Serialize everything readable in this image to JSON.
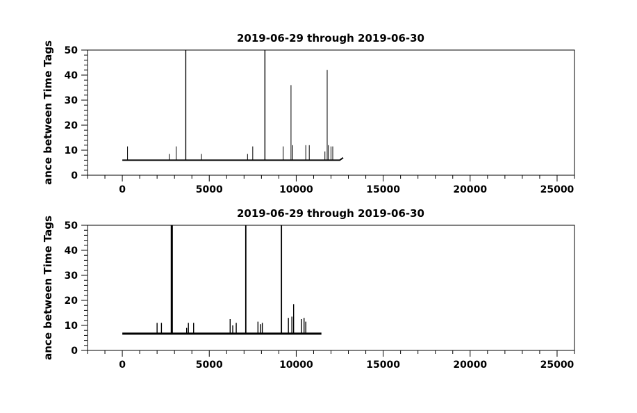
{
  "chart_data": [
    {
      "type": "line",
      "title": "2019-06-29 through 2019-06-30",
      "xlabel": "",
      "ylabel": "ance between Time Tags",
      "xlim": [
        -2000,
        26000
      ],
      "ylim": [
        0,
        50
      ],
      "xticks": [
        0,
        5000,
        10000,
        15000,
        20000,
        25000
      ],
      "xtick_labels": [
        "0",
        "5000",
        "10000",
        "15000",
        "20000",
        "25000"
      ],
      "yticks": [
        0,
        10,
        20,
        30,
        40,
        50
      ],
      "ytick_labels": [
        "0",
        "10",
        "20",
        "30",
        "40",
        "50"
      ],
      "grid": false,
      "baseline": [
        {
          "x": 0,
          "y": 6
        },
        {
          "x": 12500,
          "y": 6
        },
        {
          "x": 12700,
          "y": 7
        }
      ],
      "spikes": [
        {
          "x": 300,
          "y": 11.5
        },
        {
          "x": 2700,
          "y": 8.5
        },
        {
          "x": 3100,
          "y": 11.5
        },
        {
          "x": 3650,
          "y": 50
        },
        {
          "x": 4550,
          "y": 8.5
        },
        {
          "x": 7200,
          "y": 8.5
        },
        {
          "x": 7500,
          "y": 11.5
        },
        {
          "x": 8200,
          "y": 50
        },
        {
          "x": 9250,
          "y": 11.5
        },
        {
          "x": 9700,
          "y": 36
        },
        {
          "x": 9800,
          "y": 12
        },
        {
          "x": 10550,
          "y": 12
        },
        {
          "x": 10750,
          "y": 12
        },
        {
          "x": 11650,
          "y": 9.5
        },
        {
          "x": 11780,
          "y": 42
        },
        {
          "x": 11850,
          "y": 12
        },
        {
          "x": 12000,
          "y": 11.5
        },
        {
          "x": 12100,
          "y": 11.5
        }
      ]
    },
    {
      "type": "line",
      "title": "2019-06-29 through 2019-06-30",
      "xlabel": "",
      "ylabel": "ance between Time Tags",
      "xlim": [
        -2000,
        26000
      ],
      "ylim": [
        0,
        50
      ],
      "xticks": [
        0,
        5000,
        10000,
        15000,
        20000,
        25000
      ],
      "xtick_labels": [
        "0",
        "5000",
        "10000",
        "15000",
        "20000",
        "25000"
      ],
      "yticks": [
        0,
        10,
        20,
        30,
        40,
        50
      ],
      "ytick_labels": [
        "0",
        "10",
        "20",
        "30",
        "40",
        "50"
      ],
      "grid": false,
      "baseline": [
        {
          "x": 0,
          "y": 6.7
        },
        {
          "x": 11450,
          "y": 6.7
        }
      ],
      "spikes": [
        {
          "x": 2000,
          "y": 11
        },
        {
          "x": 2250,
          "y": 11
        },
        {
          "x": 2820,
          "y": 50
        },
        {
          "x": 2870,
          "y": 50
        },
        {
          "x": 3700,
          "y": 9
        },
        {
          "x": 3800,
          "y": 11
        },
        {
          "x": 4100,
          "y": 11
        },
        {
          "x": 6200,
          "y": 12.5
        },
        {
          "x": 6350,
          "y": 10
        },
        {
          "x": 6550,
          "y": 11
        },
        {
          "x": 7100,
          "y": 50
        },
        {
          "x": 7800,
          "y": 11.5
        },
        {
          "x": 7950,
          "y": 10.5
        },
        {
          "x": 8050,
          "y": 11
        },
        {
          "x": 9150,
          "y": 50
        },
        {
          "x": 9550,
          "y": 13
        },
        {
          "x": 9750,
          "y": 13.5
        },
        {
          "x": 9850,
          "y": 18.5
        },
        {
          "x": 10300,
          "y": 12.5
        },
        {
          "x": 10450,
          "y": 13
        },
        {
          "x": 10550,
          "y": 11.5
        }
      ]
    }
  ]
}
